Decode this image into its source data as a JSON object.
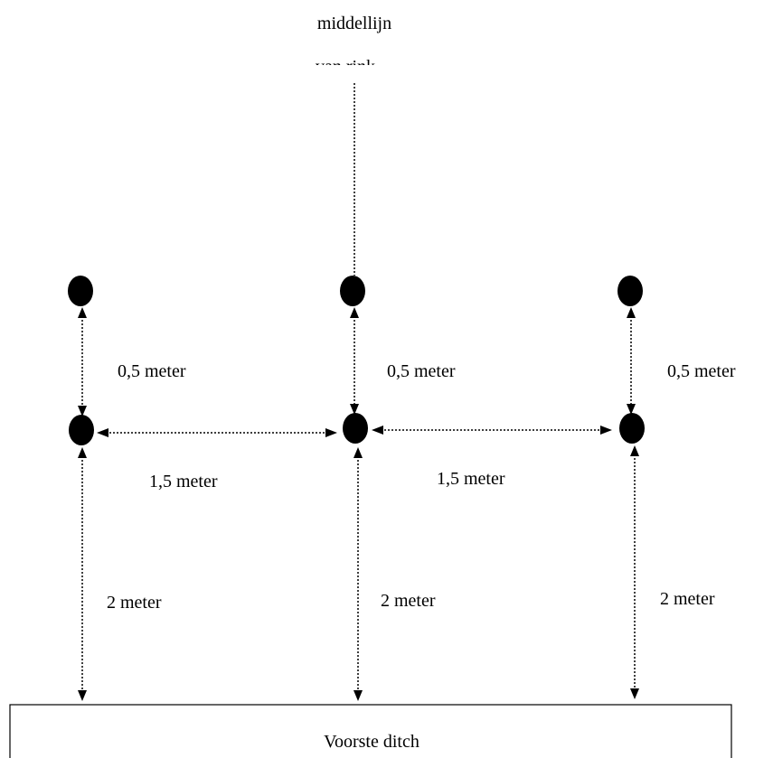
{
  "labels": {
    "centerline_top": "middellijn",
    "centerline_bottom": "van rink",
    "vertical_small_left": "0,5  meter",
    "vertical_small_mid": "0,5  meter",
    "vertical_small_right": "0,5  meter",
    "horizontal_left": "1,5  meter",
    "horizontal_right": "1,5  meter",
    "vertical_large_left": "2  meter",
    "vertical_large_mid": "2  meter",
    "vertical_large_right": "2  meter",
    "ditch": "Voorste ditch"
  },
  "colors": {
    "line": "#000000",
    "background": "#ffffff"
  }
}
